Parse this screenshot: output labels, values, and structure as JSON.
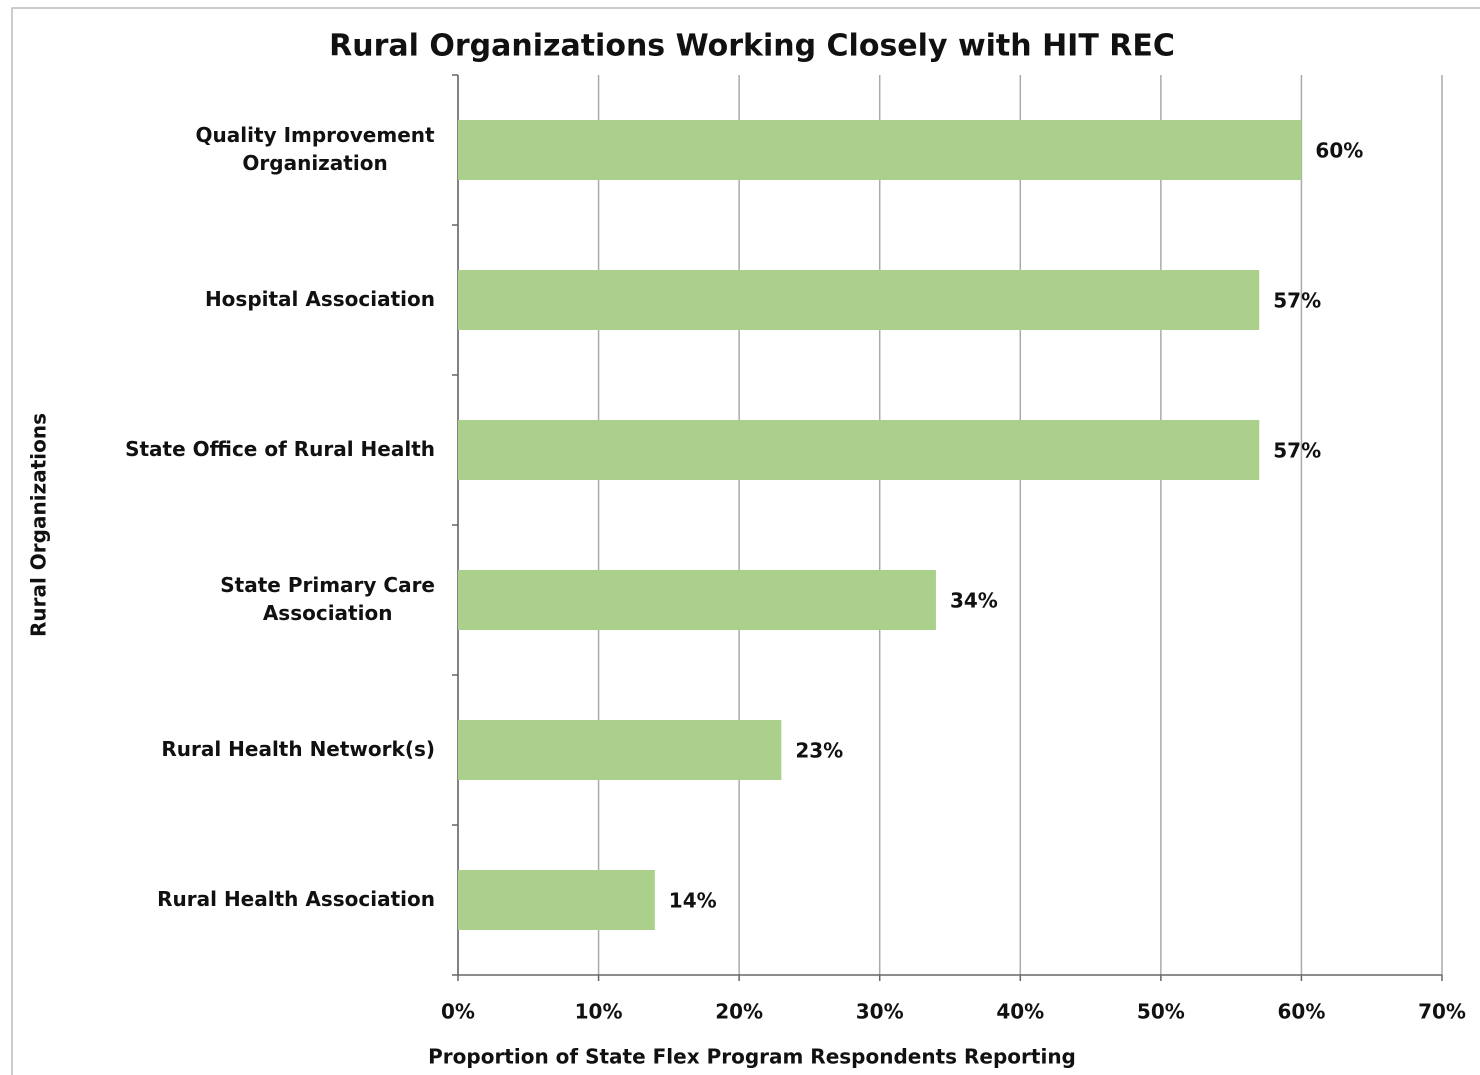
{
  "chart_data": {
    "type": "barh",
    "title": "Rural Organizations Working Closely with HIT REC",
    "x_label": "Proportion of State Flex Program Respondents Reporting",
    "y_label": "Rural Organizations",
    "categories": [
      "Quality Improvement\nOrganization",
      "Hospital Association",
      "State Office of Rural Health",
      "State Primary Care\nAssociation",
      "Rural Health Network(s)",
      "Rural Health Association"
    ],
    "values": [
      60,
      57,
      57,
      34,
      23,
      14
    ],
    "value_labels": [
      "60%",
      "57%",
      "57%",
      "34%",
      "23%",
      "14%"
    ],
    "color": "#aad08c",
    "xlim": [
      0,
      70
    ],
    "xticks": [
      {
        "value": 0,
        "label": "0%"
      },
      {
        "value": 10,
        "label": "10%"
      },
      {
        "value": 20,
        "label": "20%"
      },
      {
        "value": 30,
        "label": "30%"
      },
      {
        "value": 40,
        "label": "40%"
      },
      {
        "value": 50,
        "label": "50%"
      },
      {
        "value": 60,
        "label": "60%"
      },
      {
        "value": 70,
        "label": "70%"
      }
    ],
    "grid": true
  }
}
